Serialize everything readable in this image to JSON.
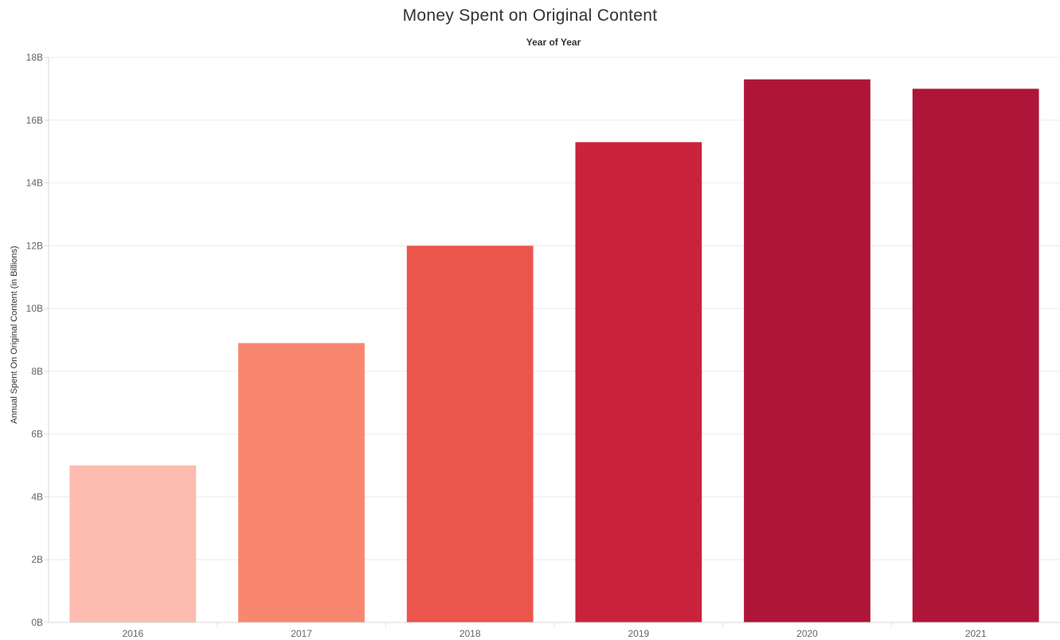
{
  "chart_data": {
    "type": "bar",
    "title": "Money Spent on Original Content",
    "x_header": "Year of Year",
    "ylabel": "Annual Spent On Original Content (in Billions)",
    "categories": [
      "2016",
      "2017",
      "2018",
      "2019",
      "2020",
      "2021"
    ],
    "values": [
      5.0,
      8.9,
      12.0,
      15.3,
      17.3,
      17.0
    ],
    "value_unit": "billions",
    "ylim": [
      0,
      18
    ],
    "yticks": [
      {
        "value": 0,
        "label": "0B"
      },
      {
        "value": 2,
        "label": "2B"
      },
      {
        "value": 4,
        "label": "4B"
      },
      {
        "value": 6,
        "label": "6B"
      },
      {
        "value": 8,
        "label": "8B"
      },
      {
        "value": 10,
        "label": "10B"
      },
      {
        "value": 12,
        "label": "12B"
      },
      {
        "value": 14,
        "label": "14B"
      },
      {
        "value": 16,
        "label": "16B"
      },
      {
        "value": 18,
        "label": "18B"
      }
    ],
    "colors": [
      "#FDBCAF",
      "#F9876F",
      "#EC554B",
      "#CB223B",
      "#AF1439",
      "#AF1439"
    ],
    "grid": true,
    "legend": "none"
  }
}
